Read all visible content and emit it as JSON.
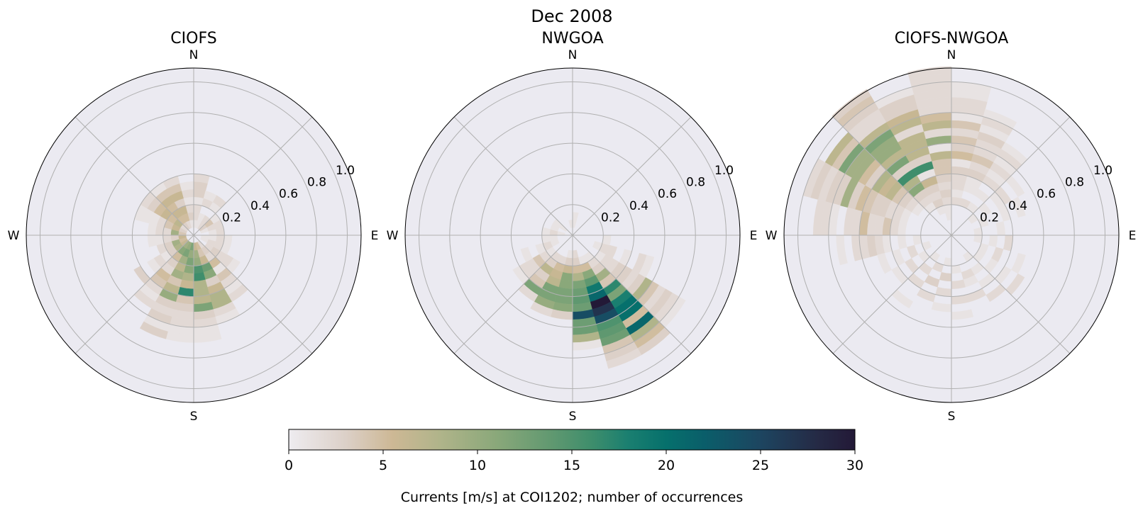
{
  "title": "Dec 2008",
  "compass_labels": {
    "N": "N",
    "E": "E",
    "S": "S",
    "W": "W"
  },
  "radial_tick_labels": [
    "0.2",
    "0.4",
    "0.6",
    "0.8",
    "1.0"
  ],
  "colorbar": {
    "label": "Currents [m/s] at COI1202; number of occurrences",
    "ticks": [
      "0",
      "5",
      "10",
      "15",
      "20",
      "25",
      "30"
    ],
    "range": [
      0,
      30
    ],
    "colormap_stops": [
      [
        0,
        "#eeecf0"
      ],
      [
        3,
        "#dcd0c8"
      ],
      [
        5.5,
        "#cdb895"
      ],
      [
        8,
        "#b0b48a"
      ],
      [
        11,
        "#8aa87a"
      ],
      [
        14,
        "#5f9870"
      ],
      [
        16,
        "#3f8e6c"
      ],
      [
        18,
        "#1a7f70"
      ],
      [
        20,
        "#06706c"
      ],
      [
        22,
        "#0a5e6a"
      ],
      [
        25,
        "#1d4560"
      ],
      [
        28,
        "#252a45"
      ],
      [
        30,
        "#231937"
      ]
    ]
  },
  "colors": {
    "axes_background": "#ebeaf1",
    "grid": "#b0b0b0"
  },
  "chart_data": [
    {
      "type": "heatmap",
      "projection": "polar",
      "title": "CIOFS",
      "direction_bin_width_deg": 15,
      "speed_bin_width": 0.05,
      "rlim": [
        0,
        1.09
      ],
      "radial_ticks": [
        0.2,
        0.4,
        0.6,
        0.8,
        1.0
      ],
      "grid": true,
      "bins": [
        {
          "dir": 172.5,
          "counts": [
            0,
            6,
            9,
            10,
            15,
            16,
            8,
            8,
            7,
            12,
            3,
            2,
            1,
            1
          ]
        },
        {
          "dir": 187.5,
          "counts": [
            0,
            12,
            10,
            12,
            11,
            8,
            6,
            17,
            4,
            3,
            2,
            2,
            1,
            1
          ]
        },
        {
          "dir": 157.5,
          "counts": [
            0,
            5,
            4,
            6,
            13,
            11,
            3,
            6,
            8,
            8,
            2,
            1
          ]
        },
        {
          "dir": 202.5,
          "counts": [
            0,
            10,
            12,
            9,
            7,
            9,
            4,
            7,
            10,
            3,
            2,
            3,
            1,
            3
          ]
        },
        {
          "dir": 142.5,
          "counts": [
            0,
            2,
            3,
            2,
            5,
            1,
            4,
            2,
            1,
            2
          ]
        },
        {
          "dir": 217.5,
          "counts": [
            0,
            9,
            11,
            5,
            3,
            2,
            5,
            4,
            2,
            1,
            2
          ]
        },
        {
          "dir": 127.5,
          "counts": [
            0,
            0,
            2,
            3,
            2,
            2,
            1
          ]
        },
        {
          "dir": 232.5,
          "counts": [
            0,
            6,
            8,
            3,
            1,
            2,
            1,
            0,
            3
          ]
        },
        {
          "dir": 112.5,
          "counts": [
            0,
            1,
            2,
            2,
            1
          ]
        },
        {
          "dir": 247.5,
          "counts": [
            0,
            5,
            9,
            3,
            2
          ]
        },
        {
          "dir": 262.5,
          "counts": [
            0,
            6,
            3,
            2,
            1,
            1
          ]
        },
        {
          "dir": 277.5,
          "counts": [
            0,
            4,
            9,
            2,
            2,
            1
          ]
        },
        {
          "dir": 292.5,
          "counts": [
            0,
            3,
            6,
            4,
            2,
            1,
            1,
            1
          ]
        },
        {
          "dir": 307.5,
          "counts": [
            0,
            2,
            7,
            5,
            6,
            5,
            3,
            2
          ]
        },
        {
          "dir": 322.5,
          "counts": [
            0,
            3,
            5,
            6,
            5,
            6,
            4,
            1
          ]
        },
        {
          "dir": 337.5,
          "counts": [
            0,
            2,
            5,
            6,
            3,
            6,
            4,
            2
          ]
        },
        {
          "dir": 352.5,
          "counts": [
            0,
            1,
            3,
            2,
            1,
            2,
            1
          ]
        },
        {
          "dir": 7.5,
          "counts": [
            0,
            1,
            2,
            2,
            1,
            3,
            3,
            2
          ]
        },
        {
          "dir": 22.5,
          "counts": [
            0,
            1,
            1,
            0,
            2,
            1
          ]
        },
        {
          "dir": 37.5,
          "counts": [
            0,
            2,
            2,
            0,
            1,
            2
          ]
        },
        {
          "dir": 52.5,
          "counts": [
            0,
            3,
            4,
            1
          ]
        },
        {
          "dir": 67.5,
          "counts": [
            0,
            1,
            2,
            2
          ]
        },
        {
          "dir": 82.5,
          "counts": [
            0,
            0,
            1,
            2
          ]
        },
        {
          "dir": 97.5,
          "counts": [
            0,
            1,
            1,
            2,
            1
          ]
        }
      ]
    },
    {
      "type": "heatmap",
      "projection": "polar",
      "title": "NWGOA",
      "direction_bin_width_deg": 15,
      "speed_bin_width": 0.05,
      "rlim": [
        0,
        1.09
      ],
      "radial_ticks": [
        0.2,
        0.4,
        0.6,
        0.8,
        1.0
      ],
      "grid": true,
      "bins": [
        {
          "dir": 172.5,
          "counts": [
            0,
            0,
            2,
            3,
            5,
            8,
            12,
            13,
            14,
            13,
            24,
            13,
            13,
            8,
            1
          ]
        },
        {
          "dir": 157.5,
          "counts": [
            0,
            0,
            0,
            1,
            5,
            11,
            14,
            19,
            21,
            30,
            27,
            24,
            15,
            14,
            13,
            4,
            3,
            2
          ]
        },
        {
          "dir": 142.5,
          "counts": [
            0,
            0,
            0,
            1,
            2,
            3,
            9,
            4,
            17,
            12,
            18,
            20,
            20,
            5,
            21,
            8,
            5,
            3
          ]
        },
        {
          "dir": 127.5,
          "counts": [
            0,
            0,
            0,
            0,
            1,
            2,
            2,
            3,
            3,
            2,
            3,
            8,
            4,
            2,
            3,
            2,
            1
          ]
        },
        {
          "dir": 112.5,
          "counts": [
            0,
            0,
            0,
            1,
            2,
            2,
            0,
            1,
            0,
            2,
            1
          ]
        },
        {
          "dir": 97.5,
          "counts": [
            0,
            0,
            0,
            0,
            1
          ]
        },
        {
          "dir": 187.5,
          "counts": [
            0,
            0,
            1,
            3,
            6,
            11,
            11,
            12,
            12,
            11,
            3
          ]
        },
        {
          "dir": 202.5,
          "counts": [
            0,
            0,
            0,
            2,
            5,
            6,
            7,
            12,
            12,
            10,
            2
          ]
        },
        {
          "dir": 217.5,
          "counts": [
            0,
            0,
            0,
            2,
            3,
            7,
            3,
            4,
            12,
            2
          ]
        },
        {
          "dir": 232.5,
          "counts": [
            0,
            0,
            0,
            1,
            2,
            4,
            2,
            2,
            1
          ]
        },
        {
          "dir": 247.5,
          "counts": [
            0,
            0,
            1,
            2,
            1,
            0,
            1
          ]
        },
        {
          "dir": 262.5,
          "counts": [
            0,
            0,
            1,
            1
          ]
        },
        {
          "dir": 277.5,
          "counts": [
            0,
            1,
            2,
            1
          ]
        },
        {
          "dir": 292.5,
          "counts": [
            0,
            0,
            1
          ]
        },
        {
          "dir": 307.5,
          "counts": [
            0,
            1,
            1
          ]
        },
        {
          "dir": 352.5,
          "counts": [
            0,
            1
          ]
        },
        {
          "dir": 7.5,
          "counts": [
            0,
            1,
            1
          ]
        }
      ]
    },
    {
      "type": "heatmap",
      "projection": "polar",
      "title": "CIOFS-NWGOA",
      "direction_bin_width_deg": 15,
      "speed_bin_width": 0.05,
      "rlim": [
        0,
        1.09
      ],
      "radial_ticks": [
        0.2,
        0.4,
        0.6,
        0.8,
        1.0
      ],
      "grid": true,
      "bins": [
        {
          "dir": 352.5,
          "counts": [
            0,
            0,
            1,
            1,
            2,
            3,
            2,
            3,
            4,
            4,
            7,
            1,
            10,
            2,
            7,
            5,
            2,
            2,
            2,
            2,
            2,
            2
          ]
        },
        {
          "dir": 337.5,
          "counts": [
            0,
            0,
            0,
            1,
            3,
            2,
            3,
            6,
            1,
            16,
            3,
            7,
            7,
            7,
            2,
            7,
            6,
            3,
            3,
            1
          ]
        },
        {
          "dir": 322.5,
          "counts": [
            0,
            0,
            0,
            0,
            1,
            2,
            3,
            11,
            8,
            16,
            3,
            12,
            7,
            10,
            10,
            12,
            7,
            2,
            2,
            3,
            4,
            3
          ]
        },
        {
          "dir": 307.5,
          "counts": [
            0,
            0,
            0,
            0,
            0,
            1,
            2,
            3,
            4,
            7,
            6,
            8,
            3,
            5,
            9,
            9,
            12,
            4,
            7
          ]
        },
        {
          "dir": 292.5,
          "counts": [
            0,
            0,
            0,
            0,
            0,
            0,
            1,
            2,
            2,
            3,
            3,
            4,
            5,
            3,
            9,
            3,
            3,
            2,
            3,
            2
          ]
        },
        {
          "dir": 277.5,
          "counts": [
            0,
            0,
            0,
            0,
            0,
            0,
            1,
            2,
            4,
            2,
            2,
            5,
            2,
            2,
            0,
            1,
            2,
            2
          ]
        },
        {
          "dir": 262.5,
          "counts": [
            0,
            0,
            0,
            0,
            1,
            0,
            1,
            0,
            1,
            2,
            3,
            2,
            2,
            0,
            1
          ]
        },
        {
          "dir": 7.5,
          "counts": [
            0,
            0,
            0,
            0,
            2,
            1,
            2,
            2,
            3,
            1,
            5,
            3,
            4,
            2,
            4,
            1,
            2,
            2,
            1,
            1
          ]
        },
        {
          "dir": 22.5,
          "counts": [
            0,
            0,
            0,
            0,
            2,
            0,
            1,
            1,
            3,
            2,
            4,
            2,
            2,
            3,
            1,
            2,
            1
          ]
        },
        {
          "dir": 37.5,
          "counts": [
            0,
            0,
            0,
            0,
            1,
            0,
            1,
            0,
            2,
            1,
            2,
            1,
            2,
            1
          ]
        },
        {
          "dir": 52.5,
          "counts": [
            0,
            0,
            0,
            1,
            0,
            1,
            0,
            1,
            2,
            0,
            1
          ]
        },
        {
          "dir": 67.5,
          "counts": [
            0,
            0,
            0,
            0,
            1,
            0,
            0,
            1,
            0,
            1
          ]
        },
        {
          "dir": 82.5,
          "counts": [
            0,
            0,
            0,
            1,
            0,
            0,
            1
          ]
        },
        {
          "dir": 97.5,
          "counts": [
            0,
            0,
            0,
            1,
            0,
            1,
            0,
            2
          ]
        },
        {
          "dir": 112.5,
          "counts": [
            0,
            0,
            0,
            0,
            1,
            0,
            2,
            0,
            0,
            1
          ]
        },
        {
          "dir": 127.5,
          "counts": [
            0,
            0,
            0,
            0,
            1,
            0,
            1,
            0,
            1,
            0,
            2
          ]
        },
        {
          "dir": 142.5,
          "counts": [
            0,
            0,
            0,
            1,
            0,
            1,
            0,
            1,
            0,
            2
          ]
        },
        {
          "dir": 157.5,
          "counts": [
            0,
            0,
            0,
            0,
            0,
            2,
            1,
            0,
            2
          ]
        },
        {
          "dir": 172.5,
          "counts": [
            0,
            0,
            0,
            0,
            1,
            0,
            2,
            0,
            2,
            0,
            1
          ]
        },
        {
          "dir": 187.5,
          "counts": [
            0,
            0,
            0,
            1,
            0,
            3,
            0,
            2,
            0,
            1
          ]
        },
        {
          "dir": 202.5,
          "counts": [
            0,
            0,
            0,
            0,
            2,
            0,
            3,
            0,
            2
          ]
        },
        {
          "dir": 217.5,
          "counts": [
            0,
            0,
            0,
            1,
            0,
            2,
            0,
            2,
            0,
            0,
            1
          ]
        },
        {
          "dir": 232.5,
          "counts": [
            0,
            0,
            0,
            0,
            1,
            0,
            2,
            0,
            1
          ]
        },
        {
          "dir": 247.5,
          "counts": [
            0,
            0,
            0,
            1,
            0,
            2,
            0,
            1,
            0,
            1
          ]
        }
      ]
    }
  ]
}
